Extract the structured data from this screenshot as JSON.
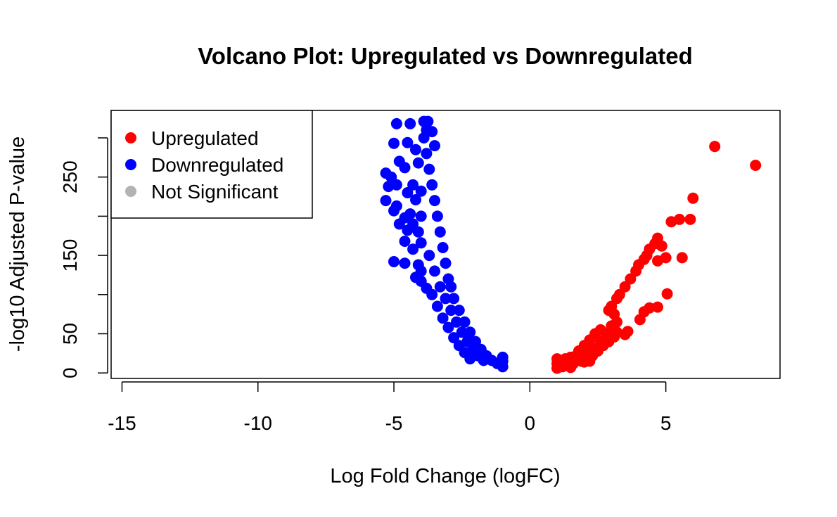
{
  "chart_data": {
    "type": "scatter",
    "title": "Volcano Plot: Upregulated vs Downregulated",
    "xlabel": "Log Fold Change (logFC)",
    "ylabel": "-log10 Adjusted P-value",
    "xlim": [
      -15.4,
      9.2
    ],
    "ylim": [
      -7,
      335
    ],
    "x_ticks": [
      -15,
      -10,
      -5,
      0,
      5
    ],
    "x_tick_labels": [
      "-15",
      "-10",
      "-5",
      "0",
      "5"
    ],
    "y_ticks": [
      0,
      50,
      100,
      150,
      200,
      250,
      300
    ],
    "y_tick_labels": [
      "0",
      "50",
      "",
      "150",
      "",
      "250",
      ""
    ],
    "grid": false,
    "legend_position": "top-left",
    "series": [
      {
        "name": "Upregulated",
        "color": "#ff0000",
        "points": [
          [
            6.8,
            289
          ],
          [
            8.3,
            265
          ],
          [
            6.0,
            223
          ],
          [
            5.2,
            193
          ],
          [
            5.5,
            196
          ],
          [
            5.9,
            196
          ],
          [
            4.7,
            172
          ],
          [
            4.6,
            165
          ],
          [
            4.85,
            162
          ],
          [
            5.0,
            147
          ],
          [
            5.6,
            147
          ],
          [
            4.7,
            143
          ],
          [
            5.05,
            101
          ],
          [
            4.7,
            84
          ],
          [
            4.4,
            83
          ],
          [
            4.2,
            78
          ],
          [
            4.05,
            68
          ],
          [
            3.6,
            53
          ],
          [
            3.5,
            49
          ],
          [
            4.4,
            158
          ],
          [
            4.3,
            150
          ],
          [
            4.2,
            145
          ],
          [
            4.0,
            138
          ],
          [
            3.9,
            130
          ],
          [
            3.7,
            120
          ],
          [
            3.5,
            110
          ],
          [
            3.3,
            100
          ],
          [
            3.2,
            95
          ],
          [
            3.0,
            85
          ],
          [
            2.9,
            80
          ],
          [
            3.1,
            75
          ],
          [
            3.2,
            65
          ],
          [
            3.0,
            60
          ],
          [
            3.2,
            52
          ],
          [
            3.1,
            46
          ],
          [
            2.9,
            40
          ],
          [
            2.7,
            35
          ],
          [
            2.5,
            28
          ],
          [
            2.3,
            22
          ],
          [
            2.1,
            18
          ],
          [
            1.9,
            15
          ],
          [
            2.4,
            30
          ],
          [
            2.0,
            25
          ],
          [
            2.6,
            40
          ],
          [
            2.8,
            50
          ],
          [
            2.2,
            15
          ],
          [
            1.6,
            12
          ],
          [
            1.4,
            10
          ],
          [
            1.2,
            8
          ],
          [
            1.0,
            6
          ],
          [
            1.0,
            12
          ],
          [
            1.0,
            18
          ],
          [
            1.1,
            14
          ],
          [
            1.3,
            18
          ],
          [
            1.5,
            20
          ],
          [
            1.7,
            22
          ],
          [
            1.8,
            28
          ],
          [
            2.0,
            35
          ],
          [
            2.2,
            42
          ],
          [
            2.4,
            50
          ],
          [
            2.6,
            55
          ],
          [
            2.3,
            32
          ],
          [
            2.0,
            14
          ],
          [
            1.5,
            7
          ]
        ]
      },
      {
        "name": "Downregulated",
        "color": "#0000ff",
        "points": [
          [
            -3.9,
            321
          ],
          [
            -3.75,
            321
          ],
          [
            -4.9,
            318
          ],
          [
            -4.4,
            318
          ],
          [
            -3.8,
            310
          ],
          [
            -3.6,
            308
          ],
          [
            -5.0,
            293
          ],
          [
            -4.5,
            294
          ],
          [
            -4.2,
            285
          ],
          [
            -3.5,
            290
          ],
          [
            -4.8,
            270
          ],
          [
            -4.1,
            268
          ],
          [
            -4.6,
            262
          ],
          [
            -5.3,
            255
          ],
          [
            -5.1,
            250
          ],
          [
            -4.9,
            240
          ],
          [
            -5.2,
            238
          ],
          [
            -4.3,
            240
          ],
          [
            -4.5,
            230
          ],
          [
            -4.0,
            232
          ],
          [
            -4.2,
            221
          ],
          [
            -5.3,
            220
          ],
          [
            -4.9,
            213
          ],
          [
            -5.0,
            207
          ],
          [
            -4.4,
            203
          ],
          [
            -4.6,
            198
          ],
          [
            -4.0,
            200
          ],
          [
            -4.8,
            190
          ],
          [
            -4.3,
            190
          ],
          [
            -4.5,
            182
          ],
          [
            -4.1,
            180
          ],
          [
            -4.6,
            168
          ],
          [
            -4.0,
            166
          ],
          [
            -4.3,
            158
          ],
          [
            -5.0,
            142
          ],
          [
            -4.6,
            140
          ],
          [
            -4.1,
            138
          ],
          [
            -4.0,
            130
          ],
          [
            -4.2,
            122
          ],
          [
            -4.0,
            117
          ],
          [
            -3.8,
            108
          ],
          [
            -3.9,
            300
          ],
          [
            -3.8,
            280
          ],
          [
            -3.7,
            260
          ],
          [
            -3.6,
            240
          ],
          [
            -3.5,
            220
          ],
          [
            -3.4,
            200
          ],
          [
            -3.3,
            180
          ],
          [
            -3.2,
            160
          ],
          [
            -3.1,
            140
          ],
          [
            -3.0,
            120
          ],
          [
            -2.9,
            110
          ],
          [
            -2.8,
            95
          ],
          [
            -2.6,
            80
          ],
          [
            -2.4,
            65
          ],
          [
            -2.2,
            52
          ],
          [
            -2.0,
            40
          ],
          [
            -1.8,
            30
          ],
          [
            -1.6,
            22
          ],
          [
            -1.4,
            16
          ],
          [
            -1.2,
            12
          ],
          [
            -1.0,
            8
          ],
          [
            -1.0,
            15
          ],
          [
            -1.0,
            20
          ],
          [
            -3.7,
            150
          ],
          [
            -3.5,
            130
          ],
          [
            -3.3,
            110
          ],
          [
            -3.1,
            95
          ],
          [
            -2.9,
            80
          ],
          [
            -2.7,
            65
          ],
          [
            -2.5,
            52
          ],
          [
            -2.3,
            40
          ],
          [
            -2.1,
            30
          ],
          [
            -1.9,
            22
          ],
          [
            -1.7,
            16
          ],
          [
            -3.6,
            100
          ],
          [
            -3.4,
            85
          ],
          [
            -3.2,
            70
          ],
          [
            -3.0,
            58
          ],
          [
            -2.8,
            45
          ],
          [
            -2.6,
            35
          ],
          [
            -2.4,
            26
          ],
          [
            -2.2,
            18
          ]
        ]
      },
      {
        "name": "Not Significant",
        "color": "#b3b3b3",
        "points": []
      }
    ]
  }
}
